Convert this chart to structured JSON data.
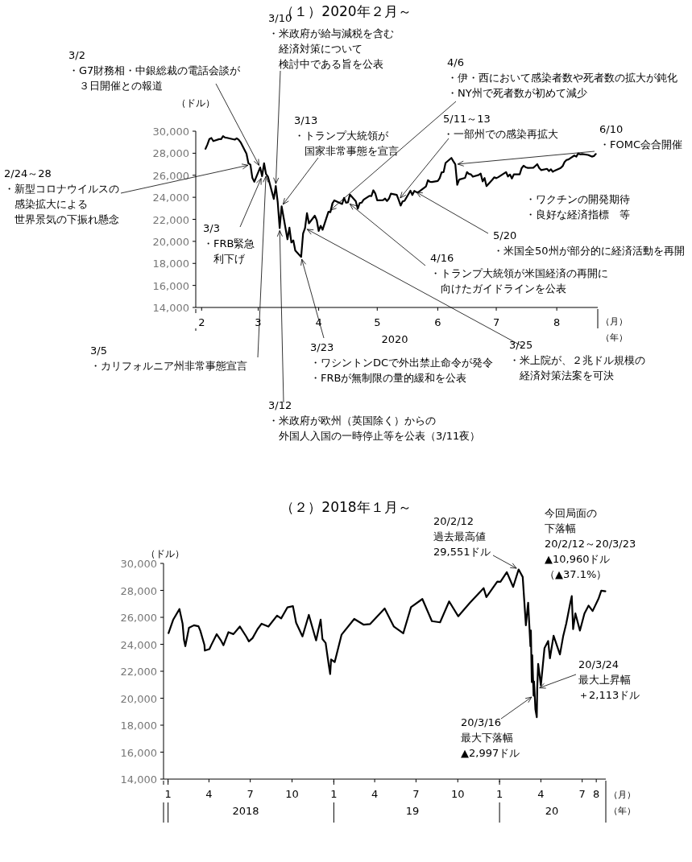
{
  "chart_data": [
    {
      "type": "line",
      "title": "（１）2020年２月～",
      "ylabel": "（ドル）",
      "xlim": [
        "2020-01-29",
        "2020-08-22"
      ],
      "xticks": [
        {
          "value": "2020-02-01",
          "label": "2"
        },
        {
          "value": "2020-03-01",
          "label": "3"
        },
        {
          "value": "2020-04-01",
          "label": "4"
        },
        {
          "value": "2020-05-01",
          "label": "5"
        },
        {
          "value": "2020-06-01",
          "label": "6"
        },
        {
          "value": "2020-07-01",
          "label": "7"
        },
        {
          "value": "2020-08-01",
          "label": "8"
        }
      ],
      "ylim": [
        14000,
        30000
      ],
      "yticks": [
        {
          "value": 14000,
          "label": "14,000"
        },
        {
          "value": 16000,
          "label": "16,000"
        },
        {
          "value": 18000,
          "label": "18,000"
        },
        {
          "value": 20000,
          "label": "20,000"
        },
        {
          "value": 22000,
          "label": "22,000"
        },
        {
          "value": 24000,
          "label": "24,000"
        },
        {
          "value": 26000,
          "label": "26,000"
        },
        {
          "value": 28000,
          "label": "28,000"
        },
        {
          "value": 30000,
          "label": "30,000"
        }
      ],
      "series": [
        {
          "color": "#000000",
          "x": [
            "2020-02-03",
            "2020-02-04",
            "2020-02-05",
            "2020-02-06",
            "2020-02-07",
            "2020-02-10",
            "2020-02-11",
            "2020-02-12",
            "2020-02-13",
            "2020-02-14",
            "2020-02-18",
            "2020-02-19",
            "2020-02-20",
            "2020-02-21",
            "2020-02-24",
            "2020-02-25",
            "2020-02-26",
            "2020-02-27",
            "2020-02-28",
            "2020-03-02",
            "2020-03-03",
            "2020-03-04",
            "2020-03-05",
            "2020-03-06",
            "2020-03-09",
            "2020-03-10",
            "2020-03-11",
            "2020-03-12",
            "2020-03-13",
            "2020-03-16",
            "2020-03-17",
            "2020-03-18",
            "2020-03-19",
            "2020-03-20",
            "2020-03-23",
            "2020-03-24",
            "2020-03-25",
            "2020-03-26",
            "2020-03-27",
            "2020-03-30",
            "2020-03-31",
            "2020-04-01",
            "2020-04-02",
            "2020-04-03",
            "2020-04-06",
            "2020-04-07",
            "2020-04-08",
            "2020-04-09",
            "2020-04-13",
            "2020-04-14",
            "2020-04-15",
            "2020-04-16",
            "2020-04-17",
            "2020-04-20",
            "2020-04-21",
            "2020-04-22",
            "2020-04-23",
            "2020-04-24",
            "2020-04-27",
            "2020-04-28",
            "2020-04-29",
            "2020-04-30",
            "2020-05-01",
            "2020-05-04",
            "2020-05-05",
            "2020-05-06",
            "2020-05-07",
            "2020-05-08",
            "2020-05-11",
            "2020-05-12",
            "2020-05-13",
            "2020-05-14",
            "2020-05-15",
            "2020-05-18",
            "2020-05-19",
            "2020-05-20",
            "2020-05-21",
            "2020-05-22",
            "2020-05-26",
            "2020-05-27",
            "2020-05-28",
            "2020-05-29",
            "2020-06-01",
            "2020-06-02",
            "2020-06-03",
            "2020-06-04",
            "2020-06-05",
            "2020-06-08",
            "2020-06-09",
            "2020-06-10",
            "2020-06-11",
            "2020-06-12",
            "2020-06-15",
            "2020-06-16",
            "2020-06-17",
            "2020-06-18",
            "2020-06-19",
            "2020-06-22",
            "2020-06-23",
            "2020-06-24",
            "2020-06-25",
            "2020-06-26",
            "2020-06-29",
            "2020-06-30",
            "2020-07-01",
            "2020-07-02",
            "2020-07-06",
            "2020-07-07",
            "2020-07-08",
            "2020-07-09",
            "2020-07-10",
            "2020-07-13",
            "2020-07-14",
            "2020-07-15",
            "2020-07-16",
            "2020-07-17",
            "2020-07-20",
            "2020-07-21",
            "2020-07-22",
            "2020-07-23",
            "2020-07-24",
            "2020-07-27",
            "2020-07-28",
            "2020-07-29",
            "2020-07-30",
            "2020-07-31",
            "2020-08-03",
            "2020-08-04",
            "2020-08-05",
            "2020-08-06",
            "2020-08-07",
            "2020-08-10",
            "2020-08-11",
            "2020-08-12",
            "2020-08-13",
            "2020-08-14",
            "2020-08-17",
            "2020-08-18",
            "2020-08-19",
            "2020-08-20",
            "2020-08-21"
          ],
          "values": [
            28400,
            28808,
            29290,
            29380,
            29103,
            29276,
            29277,
            29551,
            29424,
            29398,
            29232,
            29348,
            29220,
            28992,
            27961,
            27081,
            26957,
            25766,
            25409,
            26703,
            25917,
            27091,
            26121,
            25865,
            23851,
            25018,
            23553,
            21200,
            23186,
            20189,
            21237,
            19899,
            20087,
            19174,
            18592,
            20705,
            21201,
            22552,
            21637,
            22328,
            21917,
            20944,
            21413,
            21053,
            22680,
            22654,
            23434,
            23720,
            23390,
            23950,
            23505,
            23538,
            24242,
            23650,
            22965,
            23475,
            23515,
            23775,
            24134,
            24102,
            24634,
            24346,
            23724,
            23750,
            23883,
            23664,
            23876,
            24331,
            24221,
            23764,
            23248,
            23625,
            23685,
            24597,
            24207,
            24576,
            24474,
            24465,
            24995,
            25548,
            25401,
            25383,
            25475,
            25742,
            26270,
            26282,
            27111,
            27572,
            27272,
            26990,
            25128,
            25606,
            25763,
            26290,
            26120,
            26080,
            25871,
            26025,
            26156,
            25445,
            25746,
            25016,
            25596,
            25813,
            25735,
            25827,
            26287,
            25890,
            26067,
            25706,
            26075,
            26086,
            26643,
            26870,
            26735,
            26672,
            26680,
            26840,
            27006,
            26652,
            26470,
            26584,
            26379,
            26540,
            26314,
            26428,
            26664,
            26828,
            27202,
            27387,
            27433,
            27791,
            27687,
            27977,
            27897,
            27931,
            27845,
            27779,
            27693,
            27740,
            27930
          ]
        }
      ],
      "annotations": [
        {
          "text": "2/24～28\n・新型コロナウイルスの感染拡大による世界景気の下振れ懸念",
          "x": "2020-02-26",
          "y": 26957
        },
        {
          "text": "3/2\n・G7財務相・中銀総裁の電話会談が３日開催との報道",
          "x": "2020-03-02",
          "y": 26703
        },
        {
          "text": "3/3\n・FRB緊急利下げ",
          "x": "2020-03-03",
          "y": 25917
        },
        {
          "text": "3/5\n・カリフォルニア州非常事態宣言",
          "x": "2020-03-05",
          "y": 26121
        },
        {
          "text": "3/10\n・米政府が給与減税を含む経済対策について検討中である旨を公表",
          "x": "2020-03-10",
          "y": 25018
        },
        {
          "text": "3/12\n・米政府が欧州（英国除く）からの外国人入国の一時停止等を公表（3/11夜）",
          "x": "2020-03-12",
          "y": 21200
        },
        {
          "text": "3/13\n・トランプ大統領が国家非常事態を宣言",
          "x": "2020-03-13",
          "y": 23186
        },
        {
          "text": "3/23\n・ワシントンDCで外出禁止命令が発令・FRBが無制限の量的緩和を公表",
          "x": "2020-03-23",
          "y": 18592
        },
        {
          "text": "3/25\n・米上院が、２兆ドル規模の経済対策法案を可決",
          "x": "2020-03-25",
          "y": 21201
        },
        {
          "text": "4/6\n・伊・西において感染者数や死者数の拡大が鈍化・NY州で死者数が初めて減少",
          "x": "2020-04-06",
          "y": 22680
        },
        {
          "text": "4/16\n・トランプ大統領が米国経済の再開に向けたガイドラインを公表",
          "x": "2020-04-16",
          "y": 23538
        },
        {
          "text": "5/11～13\n・一部州での感染再拡大",
          "x": "2020-05-12",
          "y": 23764
        },
        {
          "text": "5/20\n・米国全50州が部分的に経済活動を再開",
          "x": "2020-05-20",
          "y": 24576
        },
        {
          "text": "6/10\n・FOMC会合開催",
          "x": "2020-06-10",
          "y": 26990
        },
        "・ワクチンの開発期待・良好な経済指標　等",
        "2020",
        "（月）",
        "（年）"
      ]
    },
    {
      "type": "line",
      "title": "（２）2018年１月～",
      "ylabel": "（ドル）",
      "xlim": [
        "2017-12-22",
        "2020-08-22"
      ],
      "xticks": [
        {
          "value": "2018-01-01",
          "label": "1"
        },
        {
          "value": "2018-04-01",
          "label": "4"
        },
        {
          "value": "2018-07-01",
          "label": "7"
        },
        {
          "value": "2018-10-01",
          "label": "10"
        },
        {
          "value": "2019-01-01",
          "label": "1"
        },
        {
          "value": "2019-04-01",
          "label": "4"
        },
        {
          "value": "2019-07-01",
          "label": "7"
        },
        {
          "value": "2019-10-01",
          "label": "10"
        },
        {
          "value": "2020-01-01",
          "label": "1"
        },
        {
          "value": "2020-04-01",
          "label": "4"
        },
        {
          "value": "2020-07-01",
          "label": "7"
        },
        {
          "value": "2020-08-01",
          "label": "8"
        }
      ],
      "ylim": [
        14000,
        30000
      ],
      "yticks": [
        {
          "value": 14000,
          "label": "14,000"
        },
        {
          "value": 16000,
          "label": "16,000"
        },
        {
          "value": 18000,
          "label": "18,000"
        },
        {
          "value": 20000,
          "label": "20,000"
        },
        {
          "value": 22000,
          "label": "22,000"
        },
        {
          "value": 24000,
          "label": "24,000"
        },
        {
          "value": 26000,
          "label": "26,000"
        },
        {
          "value": 28000,
          "label": "28,000"
        },
        {
          "value": 30000,
          "label": "30,000"
        }
      ],
      "series": [
        {
          "color": "#000000",
          "x": [
            "2018-01-02",
            "2018-01-12",
            "2018-01-26",
            "2018-02-02",
            "2018-02-05",
            "2018-02-08",
            "2018-02-16",
            "2018-02-27",
            "2018-03-09",
            "2018-03-13",
            "2018-03-22",
            "2018-03-23",
            "2018-04-02",
            "2018-04-06",
            "2018-04-18",
            "2018-04-27",
            "2018-05-03",
            "2018-05-14",
            "2018-05-25",
            "2018-06-08",
            "2018-06-22",
            "2018-06-28",
            "2018-07-06",
            "2018-07-17",
            "2018-07-26",
            "2018-08-10",
            "2018-08-29",
            "2018-09-07",
            "2018-09-21",
            "2018-10-03",
            "2018-10-10",
            "2018-10-24",
            "2018-11-07",
            "2018-11-23",
            "2018-12-03",
            "2018-12-07",
            "2018-12-14",
            "2018-12-21",
            "2018-12-24",
            "2018-12-26",
            "2019-01-03",
            "2019-01-18",
            "2019-02-15",
            "2019-03-08",
            "2019-03-22",
            "2019-04-23",
            "2019-05-13",
            "2019-06-03",
            "2019-06-20",
            "2019-07-15",
            "2019-08-05",
            "2019-08-23",
            "2019-09-12",
            "2019-10-02",
            "2019-10-28",
            "2019-11-27",
            "2019-12-03",
            "2019-12-27",
            "2020-01-03",
            "2020-01-17",
            "2020-01-31",
            "2020-02-12",
            "2020-02-21",
            "2020-02-28",
            "2020-03-04",
            "2020-03-09",
            "2020-03-10",
            "2020-03-12",
            "2020-03-13",
            "2020-03-16",
            "2020-03-17",
            "2020-03-20",
            "2020-03-23",
            "2020-03-24",
            "2020-03-26",
            "2020-04-01",
            "2020-04-09",
            "2020-04-17",
            "2020-04-21",
            "2020-04-29",
            "2020-05-13",
            "2020-05-20",
            "2020-05-27",
            "2020-06-05",
            "2020-06-08",
            "2020-06-11",
            "2020-06-16",
            "2020-06-26",
            "2020-07-06",
            "2020-07-15",
            "2020-07-24",
            "2020-08-06",
            "2020-08-12",
            "2020-08-21"
          ],
          "values": [
            24824,
            25803,
            26616,
            25520,
            24345,
            23860,
            25219,
            25410,
            25336,
            25007,
            23957,
            23533,
            23644,
            23933,
            24748,
            24311,
            23930,
            24899,
            24753,
            25317,
            24581,
            24216,
            24456,
            25119,
            25527,
            25313,
            26124,
            25917,
            26743,
            26828,
            25598,
            24583,
            26180,
            24286,
            25826,
            24389,
            24100,
            22445,
            21792,
            22878,
            22686,
            24706,
            25883,
            25450,
            25502,
            26656,
            25324,
            24819,
            26753,
            27359,
            25717,
            25628,
            27182,
            26078,
            27090,
            28164,
            27502,
            28645,
            28634,
            29348,
            28256,
            29551,
            28992,
            25409,
            27091,
            23851,
            25018,
            21200,
            23186,
            20189,
            21237,
            19174,
            18592,
            20705,
            22552,
            20944,
            23720,
            24242,
            22965,
            24634,
            23248,
            24576,
            25548,
            27111,
            27572,
            25128,
            26290,
            25016,
            26287,
            26870,
            26470,
            27387,
            27977,
            27930
          ]
        }
      ],
      "annotations": [
        {
          "text": "20/2/12\n過去最高値\n29,551ドル",
          "x": "2020-02-12",
          "y": 29551
        },
        "今回局面の下落幅\n20/2/12～20/3/23\n▲10,960ドル（▲37.1%）",
        {
          "text": "20/3/24\n最大上昇幅＋2,113ドル",
          "x": "2020-03-24",
          "y": 20705
        },
        {
          "text": "20/3/16\n最大下落幅▲2,997ドル",
          "x": "2020-03-16",
          "y": 20189
        },
        "2018",
        "19",
        "20",
        "（月）",
        "（年）"
      ]
    }
  ]
}
